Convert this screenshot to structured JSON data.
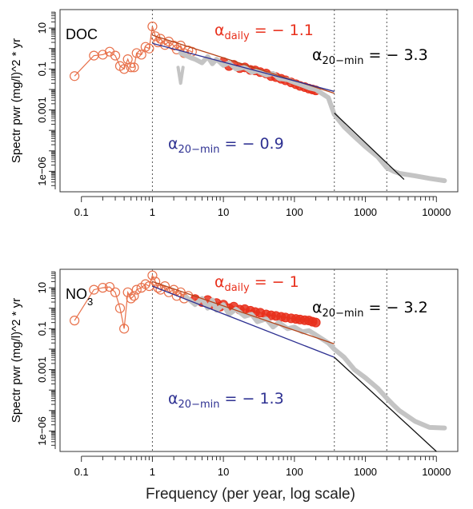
{
  "figure": {
    "xlabel": "Frequency (per year, log scale)",
    "ylabel": "Spectr pwr (mg/l)^2 * yr",
    "colors": {
      "daily": "#e8301c",
      "daily_open": "#e8704a",
      "hf": "#c4c4c4",
      "fit_daily": "#b5451b",
      "fit_lf": "#2e3192",
      "fit_hf": "#111111",
      "dotted": "#555555"
    }
  },
  "chart_data": [
    {
      "type": "line",
      "panel": "DOC",
      "title": "DOC",
      "xlabel": "Frequency (per year, log scale)",
      "ylabel": "Spectr pwr (mg/l)^2 * yr",
      "x_scale": "log",
      "y_scale": "log",
      "xlim": [
        0.05,
        20000
      ],
      "ylim": [
        1e-07,
        80
      ],
      "x_ticks": [
        0.1,
        1,
        10,
        100,
        1000,
        10000
      ],
      "x_tick_labels": [
        "0.1",
        "1",
        "10",
        "100",
        "1000",
        "10000"
      ],
      "y_ticks": [
        1e-06,
        0.001,
        0.1,
        10
      ],
      "y_tick_labels": [
        "1e−06",
        "0.001",
        "0.1",
        "10"
      ],
      "vlines": [
        1,
        365,
        2000
      ],
      "annotations": [
        {
          "id": "a_daily",
          "sym": "α",
          "sub": "daily",
          "rest": " = − 1.1",
          "color": "#e8301c"
        },
        {
          "id": "a_hf",
          "sym": "α",
          "sub": "20−min",
          "rest": " = − 3.3",
          "color": "#000000"
        },
        {
          "id": "a_lf",
          "sym": "α",
          "sub": "20−min",
          "rest": " = − 0.9",
          "color": "#2e3192"
        }
      ],
      "series": [
        {
          "style": "open",
          "x": [
            0.08,
            0.15,
            0.2,
            0.25,
            0.3,
            0.35,
            0.4,
            0.45,
            0.5,
            0.55,
            0.6,
            0.7,
            0.8,
            0.9,
            1.0,
            1.1,
            1.2,
            1.3,
            1.5,
            1.7,
            2.0,
            2.2,
            2.5,
            2.8,
            3.2,
            3.6
          ],
          "y": [
            0.045,
            0.45,
            0.5,
            0.7,
            0.45,
            0.14,
            0.1,
            0.3,
            0.12,
            0.12,
            0.6,
            0.5,
            1.2,
            1.0,
            12,
            4.0,
            2.0,
            3.0,
            1.5,
            2.2,
            1.4,
            0.9,
            1.4,
            0.6,
            0.8,
            0.7
          ]
        },
        {
          "style": "filled",
          "x": [
            10,
            12,
            14,
            17,
            20,
            24,
            28,
            33,
            40,
            47,
            55,
            65,
            75,
            90,
            105,
            120,
            140,
            160,
            180,
            200
          ],
          "y": [
            0.22,
            0.14,
            0.16,
            0.11,
            0.12,
            0.09,
            0.085,
            0.07,
            0.06,
            0.045,
            0.04,
            0.033,
            0.028,
            0.022,
            0.018,
            0.015,
            0.013,
            0.011,
            0.01,
            0.009
          ]
        },
        {
          "style": "hf",
          "x": [
            2.5,
            3,
            3.5,
            4,
            5,
            6,
            7,
            8,
            10,
            12,
            15,
            20,
            25,
            30,
            40,
            50,
            60,
            80,
            100,
            130,
            160,
            200,
            250,
            300,
            365,
            500,
            700,
            1000,
            1500,
            2000,
            2500,
            3000,
            5000,
            8000,
            13000
          ],
          "y": [
            0.6,
            0.45,
            0.35,
            0.3,
            0.2,
            0.4,
            0.18,
            0.3,
            0.15,
            0.2,
            0.1,
            0.12,
            0.07,
            0.08,
            0.05,
            0.06,
            0.035,
            0.03,
            0.022,
            0.016,
            0.012,
            0.01,
            0.006,
            0.004,
            0.0006,
            0.00015,
            5e-05,
            1.6e-05,
            5e-06,
            1.5e-06,
            1e-06,
            8e-07,
            6e-07,
            4.5e-07,
            3.5e-07
          ]
        },
        {
          "style": "dip",
          "x": [
            2.3,
            2.5,
            2.7
          ],
          "y": [
            0.12,
            0.02,
            0.12
          ]
        }
      ],
      "fits": [
        {
          "name": "daily",
          "x": [
            1,
            365
          ],
          "y": [
            4.5,
            0.0065
          ]
        },
        {
          "name": "lf",
          "x": [
            1,
            365
          ],
          "y": [
            1.8,
            0.008
          ]
        },
        {
          "name": "hf",
          "x": [
            365,
            3500
          ],
          "y": [
            0.0007,
            4e-07
          ]
        }
      ]
    },
    {
      "type": "line",
      "panel": "NO3",
      "title": "NO3",
      "xlabel": "Frequency (per year, log scale)",
      "ylabel": "Spectr pwr (mg/l)^2 * yr",
      "x_scale": "log",
      "y_scale": "log",
      "xlim": [
        0.05,
        20000
      ],
      "ylim": [
        1e-07,
        80
      ],
      "x_ticks": [
        0.1,
        1,
        10,
        100,
        1000,
        10000
      ],
      "x_tick_labels": [
        "0.1",
        "1",
        "10",
        "100",
        "1000",
        "10000"
      ],
      "y_ticks": [
        1e-06,
        0.001,
        0.1,
        10
      ],
      "y_tick_labels": [
        "1e−06",
        "0.001",
        "0.1",
        "10"
      ],
      "vlines": [
        1,
        365,
        2000
      ],
      "annotations": [
        {
          "id": "a_daily",
          "sym": "α",
          "sub": "daily",
          "rest": " = − 1",
          "color": "#e8301c"
        },
        {
          "id": "a_hf",
          "sym": "α",
          "sub": "20−min",
          "rest": " = − 3.2",
          "color": "#000000"
        },
        {
          "id": "a_lf",
          "sym": "α",
          "sub": "20−min",
          "rest": " = − 1.3",
          "color": "#2e3192"
        }
      ],
      "series": [
        {
          "style": "open",
          "x": [
            0.08,
            0.15,
            0.2,
            0.25,
            0.3,
            0.35,
            0.4,
            0.45,
            0.5,
            0.55,
            0.6,
            0.7,
            0.8,
            0.9,
            1.0,
            1.1,
            1.2,
            1.3,
            1.5,
            1.7,
            2.0,
            2.2,
            2.5,
            2.8,
            3.2
          ],
          "y": [
            0.25,
            8,
            10,
            11,
            6,
            1.0,
            0.1,
            6,
            3,
            4,
            8,
            10,
            15,
            12,
            40,
            20,
            10,
            8,
            12,
            6,
            8,
            4,
            6,
            3,
            4
          ]
        },
        {
          "style": "filled",
          "x": [
            4,
            5,
            6,
            7,
            8,
            9,
            10,
            12,
            14,
            17,
            20,
            24,
            28,
            33,
            40,
            47,
            55,
            65,
            75,
            90,
            105,
            120,
            140,
            160,
            180,
            200
          ],
          "y": [
            2.8,
            2.0,
            2.5,
            1.6,
            1.8,
            1.2,
            1.5,
            1.0,
            1.2,
            0.85,
            0.9,
            0.75,
            0.65,
            0.6,
            0.5,
            0.45,
            0.42,
            0.38,
            0.35,
            0.32,
            0.3,
            0.28,
            0.26,
            0.25,
            0.22,
            0.2
          ]
        },
        {
          "style": "hf",
          "x": [
            3,
            4,
            5,
            6,
            7,
            8,
            10,
            12,
            15,
            20,
            25,
            30,
            40,
            50,
            60,
            80,
            100,
            130,
            160,
            200,
            250,
            300,
            365,
            500,
            700,
            1000,
            1500,
            2000,
            2500,
            3000,
            5000,
            8000,
            13000
          ],
          "y": [
            3.5,
            1.5,
            3,
            1.0,
            2.5,
            0.8,
            1.5,
            0.5,
            0.9,
            0.4,
            0.5,
            0.22,
            0.3,
            0.12,
            0.2,
            0.1,
            0.12,
            0.07,
            0.08,
            0.05,
            0.03,
            0.02,
            0.01,
            0.004,
            0.001,
            0.0004,
            0.00012,
            4e-05,
            1.8e-05,
            1e-05,
            3e-06,
            1.5e-06,
            1.4e-06
          ]
        }
      ],
      "fits": [
        {
          "name": "daily",
          "x": [
            1,
            365
          ],
          "y": [
            20,
            0.018
          ]
        },
        {
          "name": "lf",
          "x": [
            1,
            365
          ],
          "y": [
            12,
            0.004
          ]
        },
        {
          "name": "hf",
          "x": [
            365,
            10000
          ],
          "y": [
            0.004,
            1e-07
          ]
        }
      ]
    }
  ]
}
